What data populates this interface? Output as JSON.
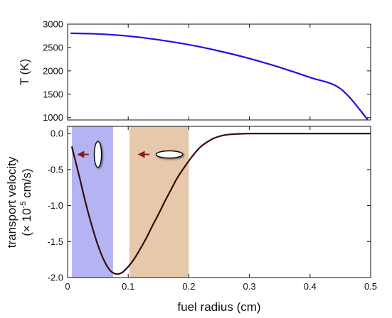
{
  "chart_data": [
    {
      "type": "line",
      "ylabel": "T (K)",
      "xlim": [
        0,
        0.5
      ],
      "ylim": [
        950,
        3000
      ],
      "yticks": [
        1000,
        1500,
        2000,
        2500,
        3000
      ],
      "xticks": [
        0,
        0.1,
        0.2,
        0.3,
        0.4,
        0.5
      ],
      "show_x_tick_labels": false,
      "grid": false,
      "series": [
        {
          "color": "#1f10e0",
          "x": [
            0.005,
            0.05,
            0.1,
            0.15,
            0.2,
            0.25,
            0.3,
            0.35,
            0.4,
            0.45,
            0.495
          ],
          "y": [
            2805,
            2790,
            2745,
            2665,
            2560,
            2425,
            2265,
            2075,
            1860,
            1620,
            960
          ]
        }
      ]
    },
    {
      "type": "line",
      "xlabel": "fuel radius (cm)",
      "ylabel": "transport velocity",
      "ylabel_line2_prefix": "(× 10",
      "ylabel_exponent": "-5",
      "ylabel_line2_suffix": " cm/s)",
      "xlim": [
        0,
        0.5
      ],
      "ylim": [
        -2.0,
        0.1
      ],
      "yticks": [
        0.0,
        -0.5,
        -1.0,
        -1.5,
        -2.0
      ],
      "ytick_labels": [
        "0.0",
        "-0.5",
        "-1.0",
        "-1.5",
        "-2.0"
      ],
      "xticks": [
        0,
        0.1,
        0.2,
        0.3,
        0.4,
        0.5
      ],
      "xtick_labels": [
        "0",
        "0.1",
        "0.2",
        "0.3",
        "0.4",
        "0.5"
      ],
      "grid": false,
      "shaded_regions": [
        {
          "x0": 0.007,
          "x1": 0.075,
          "color": "#b4b4f4"
        },
        {
          "x0": 0.102,
          "x1": 0.2,
          "color": "#e6c8aa"
        }
      ],
      "annotations": [
        {
          "kind": "arrow-left",
          "at_x": 0.035,
          "at_y": -0.29,
          "length": 0.017,
          "color": "#8b1a1a"
        },
        {
          "kind": "ellipse-vertical",
          "at_x": 0.05,
          "at_y": -0.29,
          "rx": 0.006,
          "ry": 0.18
        },
        {
          "kind": "arrow-left",
          "at_x": 0.135,
          "at_y": -0.29,
          "length": 0.017,
          "color": "#8b1a1a"
        },
        {
          "kind": "ellipse-horizontal",
          "at_x": 0.168,
          "at_y": -0.29,
          "rx": 0.022,
          "ry": 0.05
        }
      ],
      "series": [
        {
          "color": "#3a0a0a",
          "x": [
            0.007,
            0.02,
            0.03,
            0.04,
            0.05,
            0.06,
            0.07,
            0.08,
            0.09,
            0.1,
            0.11,
            0.12,
            0.13,
            0.14,
            0.15,
            0.16,
            0.17,
            0.18,
            0.19,
            0.2,
            0.21,
            0.22,
            0.23,
            0.24,
            0.25,
            0.26,
            0.27,
            0.28,
            0.29,
            0.3,
            0.32,
            0.35,
            0.4,
            0.45,
            0.5
          ],
          "y": [
            -0.18,
            -0.62,
            -0.97,
            -1.28,
            -1.55,
            -1.76,
            -1.9,
            -1.95,
            -1.93,
            -1.85,
            -1.74,
            -1.6,
            -1.45,
            -1.28,
            -1.12,
            -0.95,
            -0.79,
            -0.63,
            -0.5,
            -0.38,
            -0.27,
            -0.18,
            -0.12,
            -0.07,
            -0.04,
            -0.02,
            -0.01,
            -0.005,
            -0.002,
            0.0,
            0.0,
            0.0,
            0.0,
            0.0,
            0.0
          ]
        }
      ]
    }
  ]
}
